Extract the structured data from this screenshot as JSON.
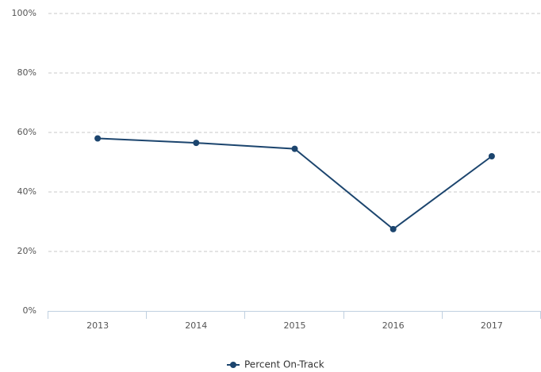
{
  "chart_data": {
    "type": "line",
    "categories": [
      "2013",
      "2014",
      "2015",
      "2016",
      "2017"
    ],
    "series": [
      {
        "name": "Percent On-Track",
        "color": "#1c456e",
        "values": [
          58,
          56.5,
          54.5,
          27.5,
          52
        ]
      }
    ],
    "ylim": [
      0,
      100
    ],
    "yticks": [
      {
        "value": 0,
        "label": "0%"
      },
      {
        "value": 20,
        "label": "20%"
      },
      {
        "value": 40,
        "label": "40%"
      },
      {
        "value": 60,
        "label": "60%"
      },
      {
        "value": 80,
        "label": "80%"
      },
      {
        "value": 100,
        "label": "100%"
      }
    ],
    "grid": true,
    "legend": "bottom"
  }
}
